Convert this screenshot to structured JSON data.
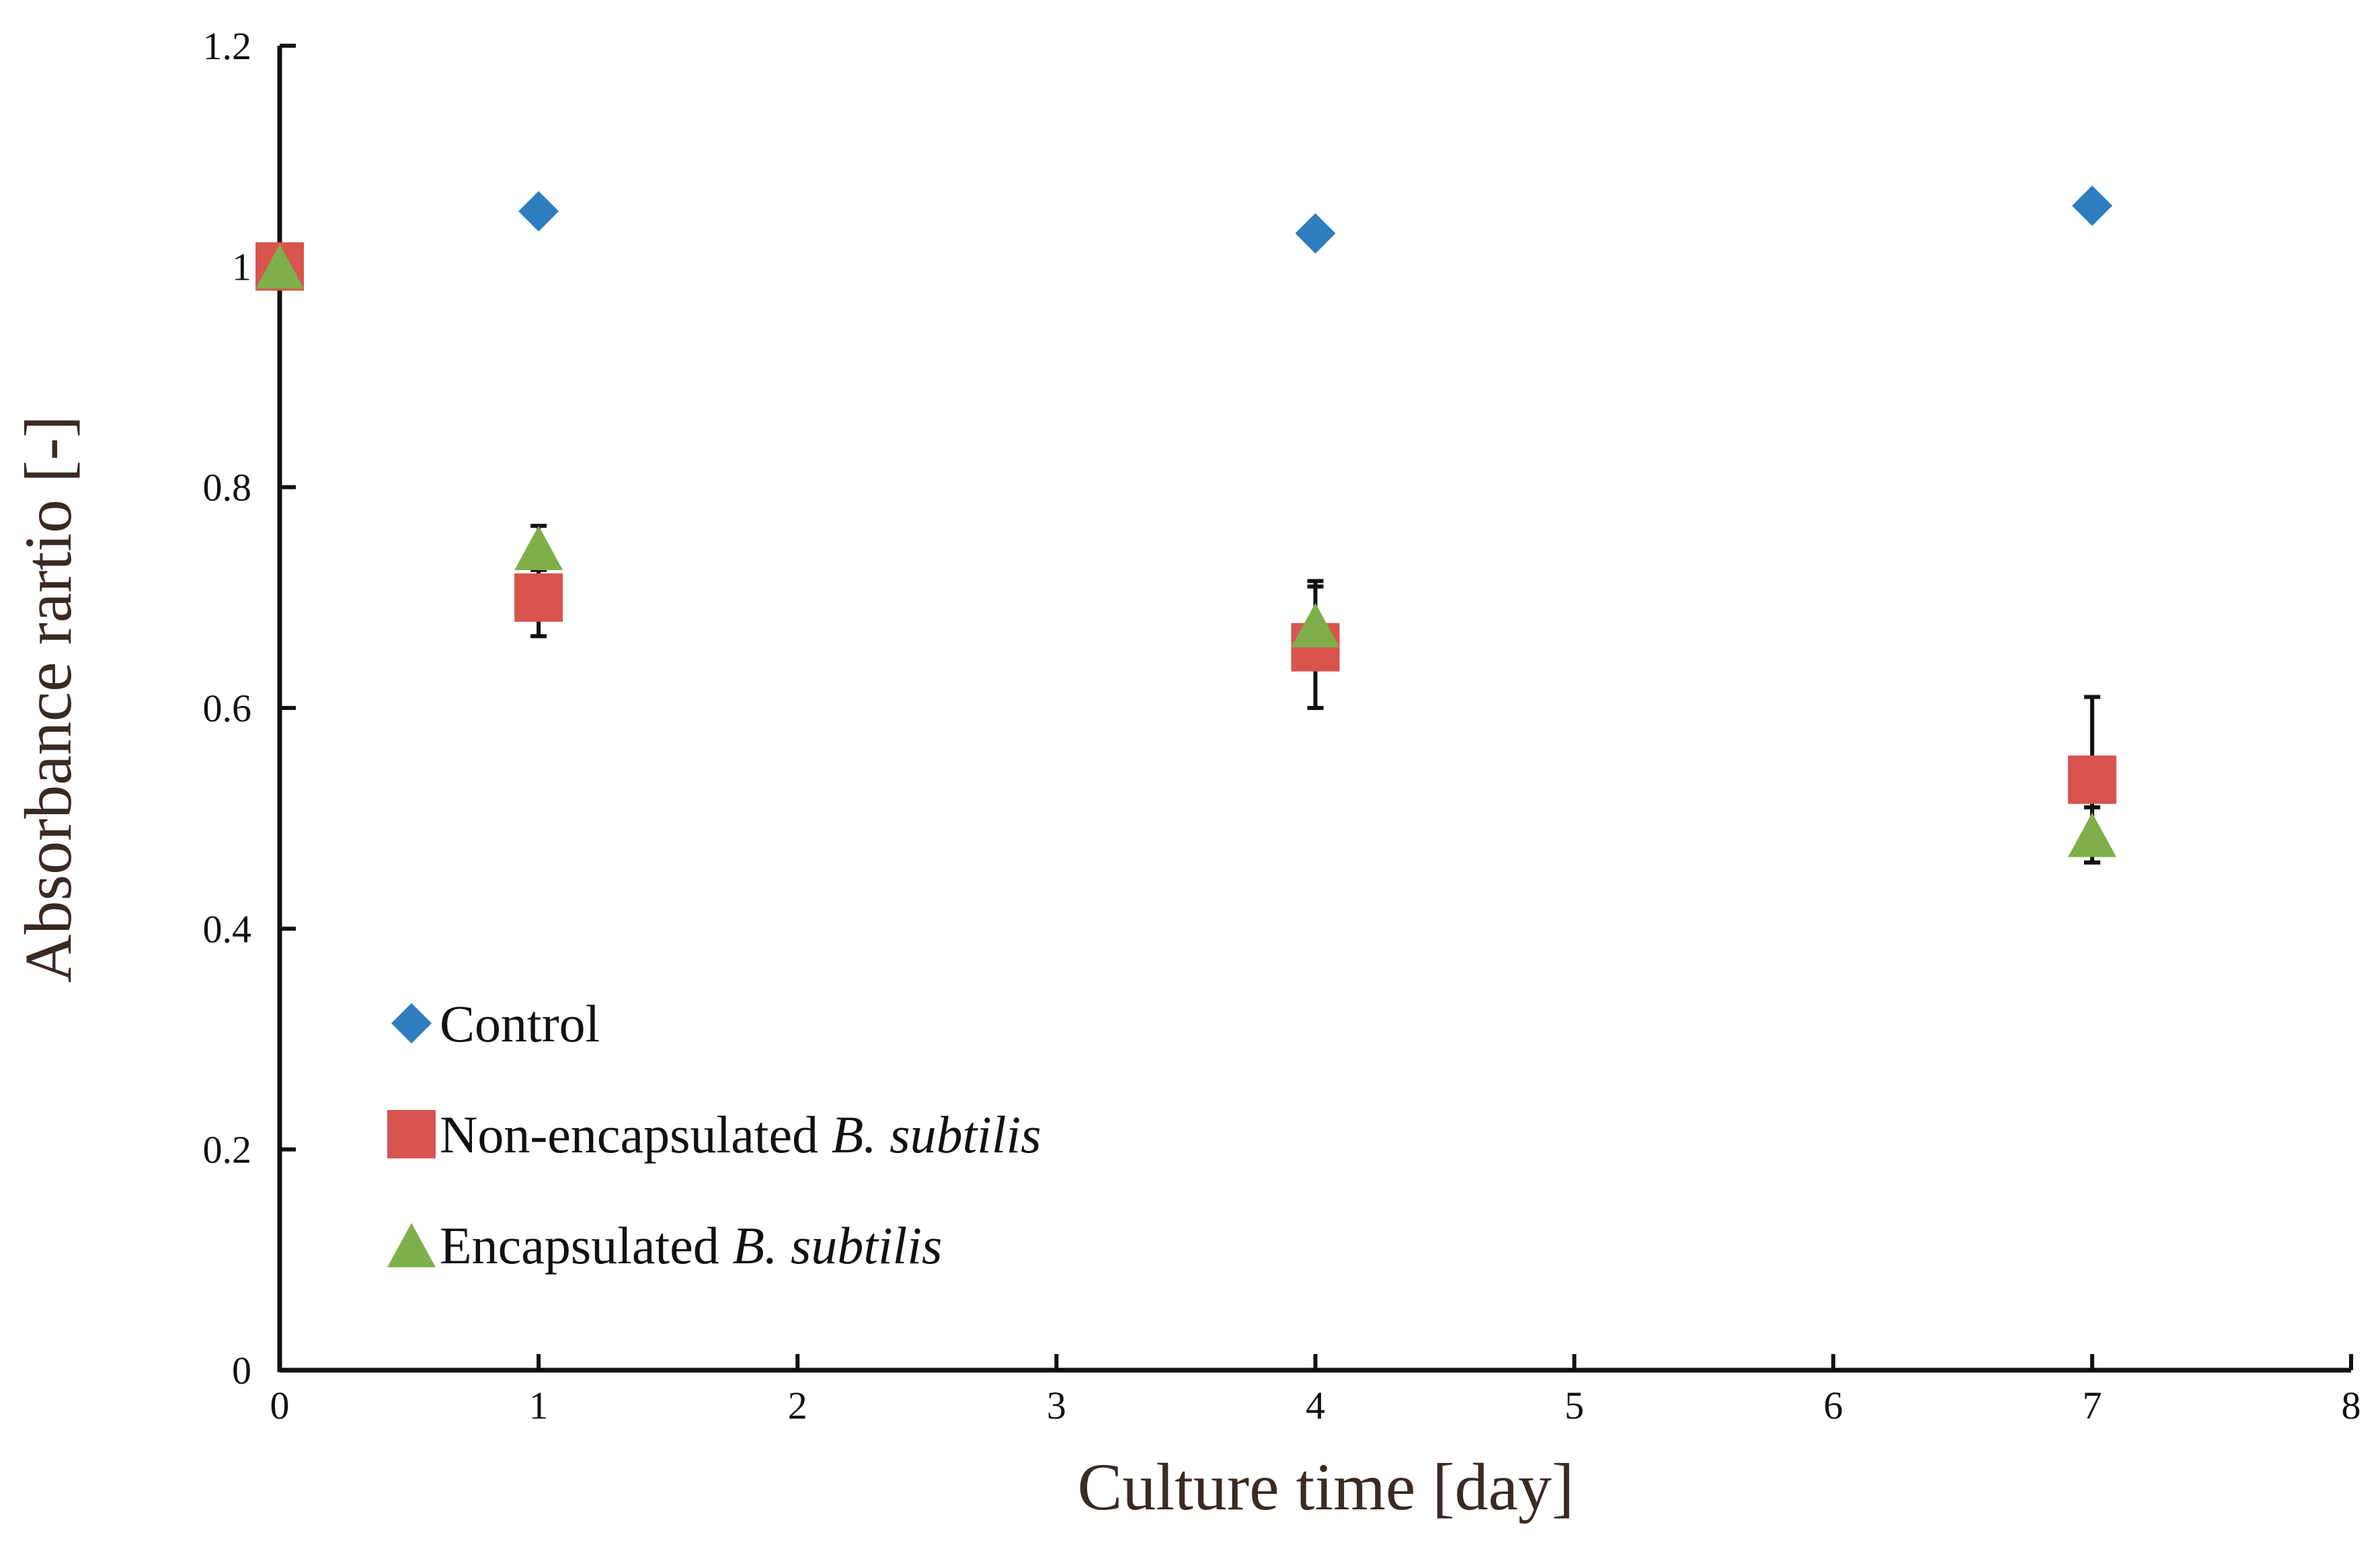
{
  "chart_data": {
    "type": "scatter",
    "title": "",
    "xlabel": "Culture time [day]",
    "ylabel": "Absorbance rartio [-]",
    "xlim": [
      0,
      8
    ],
    "ylim": [
      0,
      1.2
    ],
    "xticks": [
      0,
      1,
      2,
      3,
      4,
      5,
      6,
      7,
      8
    ],
    "yticks": [
      0,
      0.2,
      0.4,
      0.6,
      0.8,
      1,
      1.2
    ],
    "xtick_labels": [
      "0",
      "1",
      "2",
      "3",
      "4",
      "5",
      "6",
      "7",
      "8"
    ],
    "ytick_labels": [
      "0",
      "0.2",
      "0.4",
      "0.6",
      "0.8",
      "1",
      "1.2"
    ],
    "legend_position": "bottom-left",
    "series": [
      {
        "name": "Control",
        "name_plain": "Control",
        "name_italic": "",
        "marker": "diamond",
        "color": "#2E7EBF",
        "x": [
          1,
          4,
          7
        ],
        "y": [
          1.05,
          1.03,
          1.055
        ],
        "err": [
          0,
          0,
          0
        ]
      },
      {
        "name": "Non-encapsulated B. subtilis",
        "name_plain": "Non-encapsulated ",
        "name_italic": "B. subtilis",
        "marker": "square",
        "color": "#D9534F",
        "x": [
          0,
          1,
          4,
          7
        ],
        "y": [
          1.0,
          0.7,
          0.655,
          0.535
        ],
        "err": [
          0,
          0.035,
          0.055,
          0.075
        ]
      },
      {
        "name": "Encapsulated B. subtilis",
        "name_plain": "Encapsulated ",
        "name_italic": "B. subtilis",
        "marker": "triangle",
        "color": "#7FAF4A",
        "x": [
          0,
          1,
          4,
          7
        ],
        "y": [
          1.0,
          0.745,
          0.675,
          0.485
        ],
        "err": [
          0,
          0.02,
          0.04,
          0.025
        ]
      }
    ]
  }
}
